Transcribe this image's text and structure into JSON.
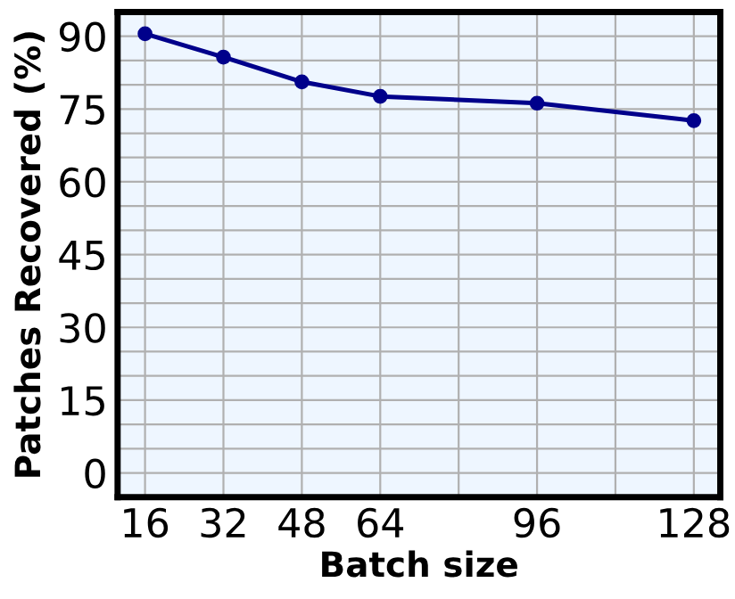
{
  "chart_data": {
    "type": "line",
    "xlabel": "Batch size",
    "ylabel": "Patches Recovered (%)",
    "x": [
      16,
      32,
      48,
      64,
      96,
      128
    ],
    "series": [
      {
        "color": "#00008b",
        "values": [
          90.5,
          85.7,
          80.6,
          77.6,
          76.2,
          72.6
        ]
      }
    ],
    "xlim": [
      10.4,
      133.4
    ],
    "ylim": [
      -5,
      95
    ],
    "xticks": [
      16,
      32,
      48,
      64,
      {
        "value": 80,
        "label": null
      },
      96,
      {
        "value": 112,
        "label": null
      },
      128
    ],
    "yticks": [
      0,
      {
        "value": 5,
        "label": null
      },
      {
        "value": 10,
        "label": null
      },
      15,
      {
        "value": 20,
        "label": null
      },
      {
        "value": 25,
        "label": null
      },
      30,
      {
        "value": 35,
        "label": null
      },
      {
        "value": 40,
        "label": null
      },
      45,
      {
        "value": 50,
        "label": null
      },
      {
        "value": 55,
        "label": null
      },
      60,
      {
        "value": 65,
        "label": null
      },
      {
        "value": 70,
        "label": null
      },
      75,
      {
        "value": 80,
        "label": null
      },
      {
        "value": 85,
        "label": null
      },
      90
    ],
    "grid": true,
    "marker": "circle",
    "line_style": "solid"
  }
}
